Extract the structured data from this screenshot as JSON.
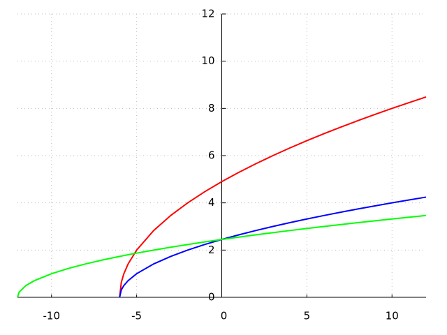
{
  "chart_data": {
    "type": "line",
    "x": [
      -12,
      -11.9,
      -11.5,
      -11,
      -10,
      -9,
      -8,
      -7,
      -6,
      -5.9,
      -5.75,
      -5.5,
      -5,
      -4,
      -3,
      -2,
      -1,
      0,
      1,
      2,
      3,
      4,
      5,
      6,
      7,
      8,
      9,
      10,
      11,
      12
    ],
    "series": [
      {
        "color": "#ff0000",
        "values": [
          null,
          null,
          null,
          null,
          null,
          null,
          null,
          null,
          0,
          0.632,
          1,
          1.414,
          2,
          2.828,
          3.464,
          4,
          4.472,
          4.899,
          5.292,
          5.657,
          6,
          6.325,
          6.633,
          6.928,
          7.211,
          7.483,
          7.746,
          8,
          8.246,
          8.485
        ]
      },
      {
        "color": "#0000ff",
        "values": [
          null,
          null,
          null,
          null,
          null,
          null,
          null,
          null,
          0,
          0.316,
          0.5,
          0.707,
          1,
          1.414,
          1.732,
          2,
          2.236,
          2.449,
          2.646,
          2.828,
          3,
          3.162,
          3.317,
          3.464,
          3.606,
          3.742,
          3.873,
          4,
          4.123,
          4.243
        ]
      },
      {
        "color": "#00ff00",
        "values": [
          0,
          0.224,
          0.5,
          0.707,
          1,
          1.225,
          1.414,
          1.581,
          1.732,
          1.746,
          1.768,
          1.803,
          1.871,
          2,
          2.121,
          2.236,
          2.345,
          2.449,
          2.55,
          2.646,
          2.739,
          2.828,
          2.915,
          3,
          3.082,
          3.162,
          3.24,
          3.317,
          3.391,
          3.464
        ]
      }
    ],
    "xlim": [
      -12,
      12
    ],
    "ylim": [
      0,
      12
    ],
    "xticks": [
      -10,
      -5,
      0,
      5,
      10
    ],
    "yticks": [
      0,
      2,
      4,
      6,
      8,
      10,
      12
    ],
    "grid": true
  }
}
